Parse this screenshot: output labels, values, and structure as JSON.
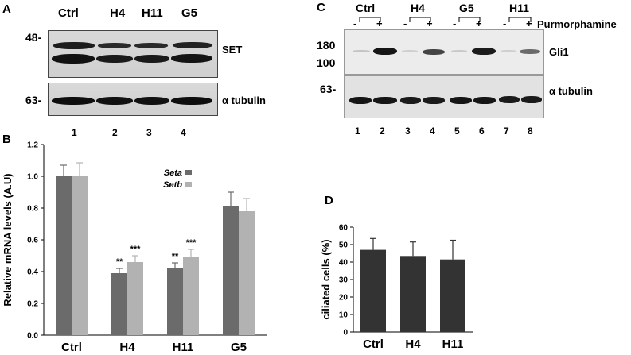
{
  "panelA": {
    "letter": "A",
    "lanes": [
      "Ctrl",
      "H4",
      "H11",
      "G5"
    ],
    "lane_numbers": [
      "1",
      "2",
      "3",
      "4"
    ],
    "marker_top": "48-",
    "marker_bottom": "63-",
    "label_top": "SET",
    "label_bottom": "α tubulin"
  },
  "panelC": {
    "letter": "C",
    "lanes": [
      "Ctrl",
      "H4",
      "G5",
      "H11"
    ],
    "signs": [
      "-",
      "+",
      "-",
      "+",
      "-",
      "+",
      "-",
      "+"
    ],
    "treatment": "Purmorphamine",
    "marker_180": "180",
    "marker_100": "100",
    "marker_63": "63-",
    "label_top": "Gli1",
    "label_bottom": "α tubulin",
    "lane_numbers": [
      "1",
      "2",
      "3",
      "4",
      "5",
      "6",
      "7",
      "8"
    ]
  },
  "chart_data": [
    {
      "panel": "B",
      "type": "bar",
      "title": "",
      "xlabel": "",
      "ylabel": "Relative mRNA levels (A.U)",
      "ylim": [
        0,
        1.2
      ],
      "yticks": [
        "0.0",
        "0.2",
        "0.4",
        "0.6",
        "0.8",
        "1.0",
        "1.2"
      ],
      "categories": [
        "Ctrl",
        "H4",
        "H11",
        "G5"
      ],
      "series": [
        {
          "name": "Seta",
          "color": "#6b6b6b",
          "values": [
            1.0,
            0.39,
            0.42,
            0.81
          ],
          "errors": [
            0.07,
            0.03,
            0.035,
            0.09
          ],
          "marks": [
            "",
            "**",
            "**",
            ""
          ]
        },
        {
          "name": "Setb",
          "color": "#b2b2b2",
          "values": [
            1.0,
            0.46,
            0.49,
            0.78
          ],
          "errors": [
            0.085,
            0.04,
            0.05,
            0.08
          ],
          "marks": [
            "",
            "***",
            "***",
            ""
          ]
        }
      ],
      "legend": "top-right"
    },
    {
      "panel": "D",
      "type": "bar",
      "title": "",
      "xlabel": "",
      "ylabel": "ciliated cells (%)",
      "ylim": [
        0,
        60
      ],
      "yticks": [
        "0",
        "10",
        "20",
        "30",
        "40",
        "50",
        "60"
      ],
      "categories": [
        "Ctrl",
        "H4",
        "H11"
      ],
      "series": [
        {
          "color": "#333333",
          "values": [
            47,
            43.5,
            41.5
          ],
          "errors": [
            6.5,
            8,
            11
          ]
        }
      ]
    }
  ]
}
